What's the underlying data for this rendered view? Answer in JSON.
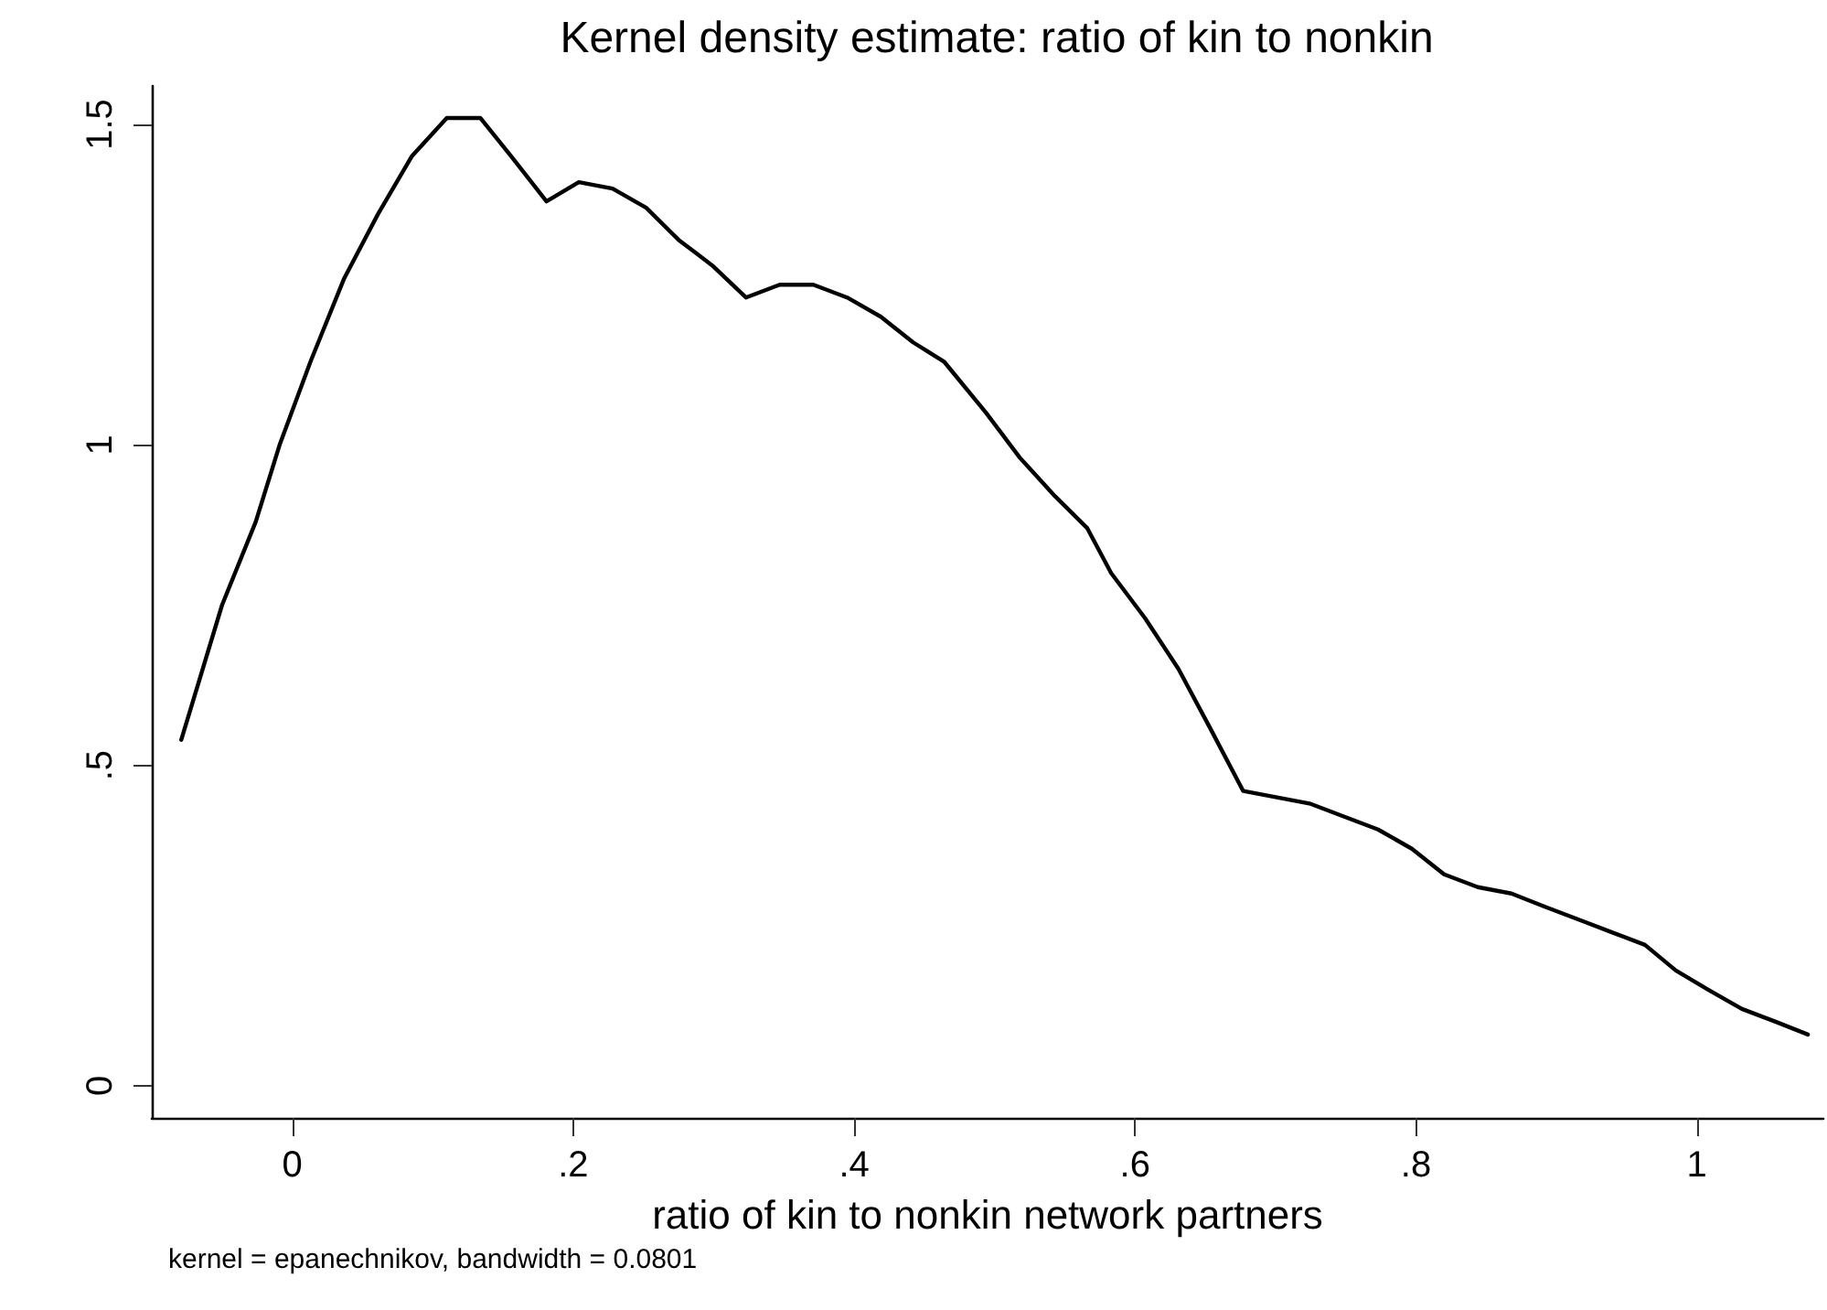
{
  "chart_data": {
    "type": "line",
    "title": "Kernel density estimate: ratio of kin to nonkin",
    "xlabel": "ratio of kin to nonkin network partners",
    "annotations": [
      "kernel = epanechnikov, bandwidth = 0.0801"
    ],
    "x": [
      -0.079,
      -0.05,
      -0.026,
      -0.009,
      0.013,
      0.037,
      0.061,
      0.085,
      0.11,
      0.134,
      0.156,
      0.181,
      0.204,
      0.228,
      0.252,
      0.275,
      0.299,
      0.323,
      0.347,
      0.371,
      0.395,
      0.419,
      0.442,
      0.464,
      0.494,
      0.518,
      0.543,
      0.566,
      0.583,
      0.607,
      0.631,
      0.653,
      0.677,
      0.701,
      0.725,
      0.749,
      0.773,
      0.797,
      0.82,
      0.844,
      0.868,
      0.891,
      0.915,
      0.939,
      0.963,
      0.985,
      1.008,
      1.032,
      1.056,
      1.079
    ],
    "series": [
      {
        "color": "#000000",
        "values": [
          0.54,
          0.75,
          0.88,
          1.0,
          1.13,
          1.26,
          1.36,
          1.45,
          1.51,
          1.51,
          1.45,
          1.38,
          1.41,
          1.4,
          1.37,
          1.32,
          1.28,
          1.23,
          1.25,
          1.25,
          1.23,
          1.2,
          1.16,
          1.13,
          1.05,
          0.98,
          0.92,
          0.87,
          0.8,
          0.73,
          0.65,
          0.56,
          0.46,
          0.45,
          0.44,
          0.42,
          0.4,
          0.37,
          0.33,
          0.31,
          0.3,
          0.28,
          0.26,
          0.24,
          0.22,
          0.18,
          0.15,
          0.12,
          0.1,
          0.08
        ]
      }
    ],
    "xlim": [
      -0.1,
      1.09
    ],
    "ylim": [
      -0.05,
      1.56
    ],
    "xticks": [
      0,
      {
        "value": 0.2,
        "label": ".2"
      },
      {
        "value": 0.4,
        "label": ".4"
      },
      {
        "value": 0.6,
        "label": ".6"
      },
      {
        "value": 0.8,
        "label": ".8"
      },
      1
    ],
    "yticks": [
      0,
      {
        "value": 0.5,
        "label": ".5"
      },
      1,
      1.5
    ],
    "grid": false,
    "marker": "none",
    "line_style": "solid"
  }
}
